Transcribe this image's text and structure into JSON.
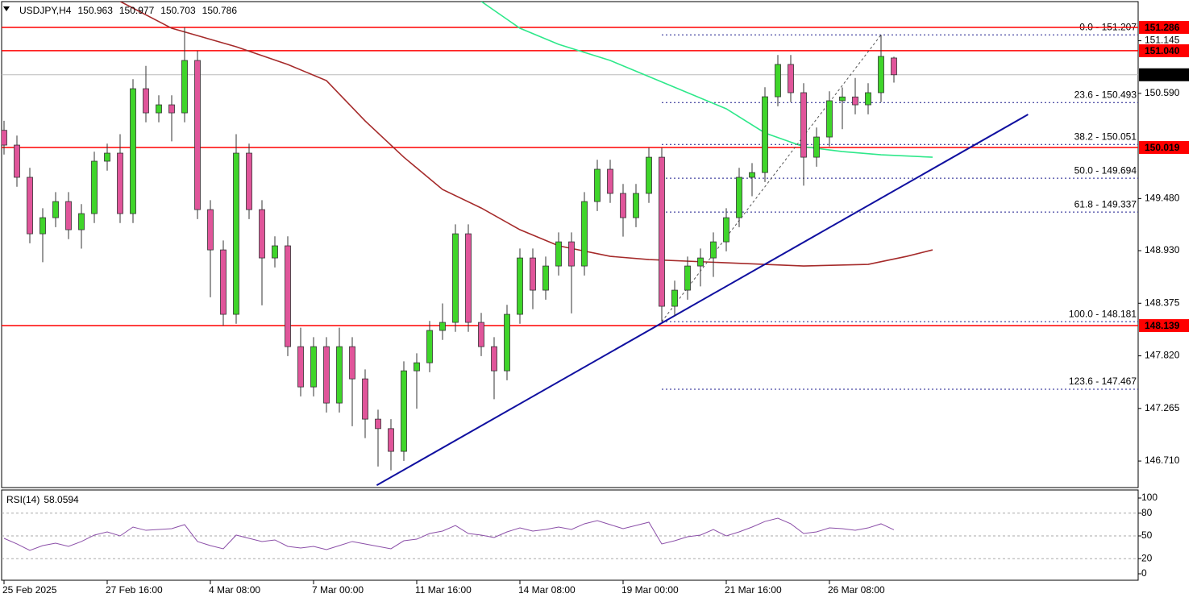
{
  "chart_data": [
    {
      "type": "candlestick",
      "symbol": "USDJPY,H4",
      "categories": [
        "25 Feb 2025",
        null,
        null,
        null,
        null,
        null,
        null,
        null,
        "27 Feb 16:00",
        null,
        null,
        null,
        null,
        null,
        null,
        null,
        "4 Mar 08:00",
        null,
        null,
        null,
        null,
        null,
        null,
        null,
        "7 Mar 00:00",
        null,
        null,
        null,
        null,
        null,
        null,
        null,
        "11 Mar 16:00",
        null,
        null,
        null,
        null,
        null,
        null,
        null,
        "14 Mar 08:00",
        null,
        null,
        null,
        null,
        null,
        null,
        null,
        "19 Mar 00:00",
        null,
        null,
        null,
        null,
        null,
        null,
        null,
        "21 Mar 16:00",
        null,
        null,
        null,
        null,
        null,
        null,
        null,
        "26 Mar 08:00",
        null,
        null,
        null,
        null,
        null
      ],
      "open": [
        150.2,
        150.044,
        149.704,
        149.108,
        149.278,
        149.448,
        149.151,
        149.321,
        149.874,
        149.959,
        149.321,
        150.639,
        150.384,
        150.469,
        150.384,
        150.937,
        149.363,
        148.938,
        148.258,
        149.959,
        149.363,
        148.853,
        148.981,
        147.917,
        147.492,
        147.917,
        147.322,
        147.917,
        147.577,
        147.152,
        147.052,
        146.812,
        147.662,
        147.747,
        148.088,
        148.173,
        149.108,
        148.173,
        147.917,
        147.662,
        148.258,
        148.853,
        148.513,
        148.768,
        149.023,
        148.768,
        149.448,
        149.789,
        149.534,
        149.278,
        149.534,
        149.916,
        148.343,
        148.513,
        148.768,
        148.853,
        149.023,
        149.278,
        149.704,
        149.754,
        150.554,
        150.895,
        150.597,
        149.916,
        150.129,
        150.512,
        150.552,
        150.469,
        150.597,
        150.963
      ],
      "high": [
        150.3,
        150.144,
        149.804,
        149.378,
        149.548,
        149.548,
        149.421,
        149.974,
        150.059,
        150.159,
        150.739,
        150.88,
        150.569,
        150.569,
        151.286,
        151.037,
        149.463,
        149.038,
        150.159,
        150.059,
        149.463,
        149.081,
        149.081,
        148.117,
        148.017,
        148.017,
        148.117,
        148.017,
        147.677,
        147.252,
        147.152,
        147.762,
        147.847,
        148.188,
        148.373,
        149.208,
        149.208,
        148.273,
        148.017,
        148.358,
        148.953,
        148.953,
        148.868,
        149.123,
        149.123,
        149.548,
        149.889,
        149.889,
        149.634,
        149.634,
        150.016,
        150.016,
        148.613,
        148.868,
        148.953,
        149.123,
        149.378,
        149.804,
        149.854,
        150.654,
        150.995,
        150.995,
        150.697,
        150.229,
        150.612,
        150.652,
        150.752,
        150.697,
        151.207,
        150.977
      ],
      "low": [
        149.944,
        149.604,
        149.008,
        148.808,
        149.178,
        149.051,
        148.951,
        149.221,
        149.774,
        149.221,
        149.221,
        150.284,
        150.284,
        150.084,
        150.284,
        149.263,
        148.438,
        148.139,
        148.158,
        149.263,
        148.353,
        148.753,
        147.817,
        147.392,
        147.392,
        147.222,
        147.222,
        147.077,
        146.952,
        146.652,
        146.612,
        146.712,
        147.262,
        147.647,
        147.988,
        148.073,
        148.073,
        147.817,
        147.362,
        147.562,
        148.158,
        148.313,
        148.413,
        148.668,
        148.268,
        148.668,
        149.348,
        149.434,
        149.078,
        149.178,
        149.434,
        148.181,
        148.243,
        148.413,
        148.553,
        148.653,
        148.923,
        149.178,
        149.504,
        149.654,
        150.454,
        150.497,
        149.616,
        149.816,
        150.029,
        150.212,
        150.369,
        150.369,
        150.497,
        150.703
      ],
      "close": [
        150.044,
        149.704,
        149.108,
        149.278,
        149.448,
        149.151,
        149.321,
        149.874,
        149.959,
        149.321,
        150.639,
        150.384,
        150.469,
        150.384,
        150.937,
        149.363,
        148.938,
        148.258,
        149.959,
        149.363,
        148.853,
        148.981,
        147.917,
        147.492,
        147.917,
        147.322,
        147.917,
        147.577,
        147.152,
        147.052,
        146.812,
        147.662,
        147.747,
        148.088,
        148.173,
        149.108,
        148.173,
        147.917,
        147.662,
        148.258,
        148.853,
        148.513,
        148.768,
        149.023,
        148.768,
        149.448,
        149.789,
        149.534,
        149.278,
        149.534,
        149.916,
        148.343,
        148.513,
        148.768,
        148.853,
        149.023,
        149.278,
        149.704,
        149.754,
        150.554,
        150.895,
        150.597,
        149.916,
        150.129,
        150.512,
        150.552,
        150.469,
        150.597,
        150.98,
        150.786
      ],
      "bull_color": "#3fd52a",
      "bear_color": "#e0559a",
      "ylim": [
        146.43,
        151.575
      ],
      "yticks": [
        151.145,
        {
          "value": 150.59,
          "label": "150.590"
        },
        {
          "value": 149.48,
          "label": "149.480"
        },
        {
          "value": 148.93,
          "label": "148.930"
        },
        148.375,
        {
          "value": 147.82,
          "label": "147.820"
        },
        147.265,
        {
          "value": 146.71,
          "label": "146.710"
        }
      ],
      "moving_averages": [
        {
          "color": "#2ee88a",
          "x": [
            37,
            40,
            43,
            47,
            50,
            53,
            56,
            59,
            62,
            65,
            68,
            72
          ],
          "values": [
            151.56,
            151.277,
            151.107,
            150.937,
            150.767,
            150.597,
            150.427,
            150.172,
            150.027,
            149.976,
            149.942,
            149.916
          ]
        },
        {
          "color": "#a52a2a",
          "x": [
            9,
            13,
            18,
            22,
            25,
            28,
            31,
            34,
            37,
            40,
            43,
            47,
            50,
            56,
            62,
            67,
            70,
            72
          ],
          "values": [
            151.56,
            151.277,
            151.082,
            150.895,
            150.724,
            150.299,
            149.916,
            149.576,
            149.38,
            149.151,
            148.981,
            148.87,
            148.836,
            148.802,
            148.768,
            148.785,
            148.87,
            148.938
          ]
        }
      ],
      "trendlines": [
        {
          "color": "#1010a0",
          "x": [
            28.9,
            79.4
          ],
          "values": [
            146.454,
            150.367
          ]
        },
        {
          "color": "#555555",
          "dashed": true,
          "x": [
            51,
            68
          ],
          "values": [
            148.181,
            151.207
          ]
        }
      ],
      "levels": [
        151.286,
        {
          "value": 151.04,
          "label": "151.040"
        },
        150.019,
        148.139
      ],
      "level_color": "#ff0000",
      "fib_color": "#1a1a8c",
      "fib_levels": [
        {
          "value": 151.207,
          "label": "0.0 - 151.207"
        },
        {
          "value": 150.493,
          "label": "23.6 - 150.493"
        },
        {
          "value": 150.051,
          "label": "38.2 - 150.051"
        },
        {
          "value": 149.694,
          "label": "50.0 - 149.694"
        },
        {
          "value": 149.337,
          "label": "61.8 - 149.337"
        },
        {
          "value": 148.181,
          "label": "100.0 - 148.181"
        },
        {
          "value": 147.467,
          "label": "123.6 - 147.467"
        }
      ]
    },
    {
      "type": "line",
      "title": "RSI(14)",
      "color": "#8b4fa8",
      "values": [
        46.8,
        39.4,
        30.9,
        37.2,
        40.4,
        36.2,
        42.6,
        51.1,
        55.3,
        50.0,
        61.7,
        57.4,
        58.5,
        59.6,
        64.9,
        42.6,
        37.2,
        33.0,
        51.1,
        46.8,
        42.6,
        44.7,
        36.2,
        34.0,
        36.2,
        31.9,
        37.2,
        42.6,
        39.4,
        36.2,
        33.0,
        43.6,
        45.7,
        53.2,
        56.4,
        63.8,
        53.2,
        51.1,
        47.9,
        55.3,
        60.6,
        56.4,
        58.5,
        61.7,
        58.5,
        66.0,
        70.2,
        64.9,
        59.6,
        63.8,
        68.1,
        39.4,
        43.6,
        48.9,
        51.1,
        58.5,
        50.0,
        55.3,
        61.7,
        69.1,
        73.4,
        66.0,
        53.2,
        55.3,
        60.6,
        59.6,
        57.4,
        60.6,
        66.0,
        58.0594
      ],
      "ylim": [
        -8.5,
        111.7
      ],
      "yticks": [
        100,
        80,
        50,
        20,
        0
      ],
      "levels": [
        80,
        50,
        20
      ]
    }
  ]
}
